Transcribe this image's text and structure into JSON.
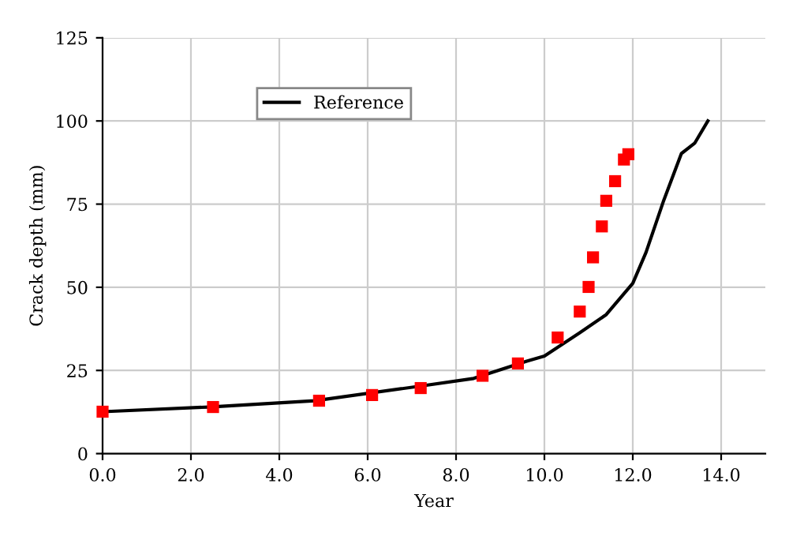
{
  "chart_data": {
    "type": "scatter",
    "xlabel": "Year",
    "ylabel": "Crack depth (mm)",
    "xlim": [
      0,
      15
    ],
    "ylim": [
      0,
      125
    ],
    "xticks": [
      {
        "value": 0,
        "label": "0.0"
      },
      {
        "value": 2,
        "label": "2.0"
      },
      {
        "value": 4,
        "label": "4.0"
      },
      {
        "value": 6,
        "label": "6.0"
      },
      {
        "value": 8,
        "label": "8.0"
      },
      {
        "value": 10,
        "label": "10.0"
      },
      {
        "value": 12,
        "label": "12.0"
      },
      {
        "value": 14,
        "label": "14.0"
      }
    ],
    "yticks": [
      0,
      25,
      50,
      75,
      100,
      125
    ],
    "grid": true,
    "legend": "top left",
    "series": [
      {
        "marker": "square",
        "color": "#ff0000",
        "x": [
          0,
          2.5,
          4.9,
          6.1,
          7.2,
          8.6,
          9.4,
          10.3,
          10.8,
          11.0,
          11.1,
          11.3,
          11.4,
          11.6,
          11.8,
          11.9
        ],
        "values": [
          12.6,
          14.0,
          15.9,
          17.6,
          19.7,
          23.4,
          27.1,
          34.9,
          42.7,
          50.1,
          59.0,
          68.3,
          76.0,
          81.9,
          88.4,
          90.0
        ]
      },
      {
        "type": "line",
        "name": "Reference",
        "marker": "none",
        "line_style": "solid",
        "color": "#000000",
        "x": [
          0,
          2.4,
          4.8,
          7.2,
          8.4,
          9.6,
          10.0,
          10.8,
          11.4,
          11.7,
          12.0,
          12.3,
          12.7,
          13.1,
          13.4,
          13.7
        ],
        "values": [
          12.6,
          14.0,
          15.9,
          20.3,
          22.6,
          27.8,
          29.3,
          36.3,
          41.8,
          46.5,
          51.2,
          60.5,
          76.1,
          90.2,
          93.3,
          100
        ]
      }
    ]
  }
}
